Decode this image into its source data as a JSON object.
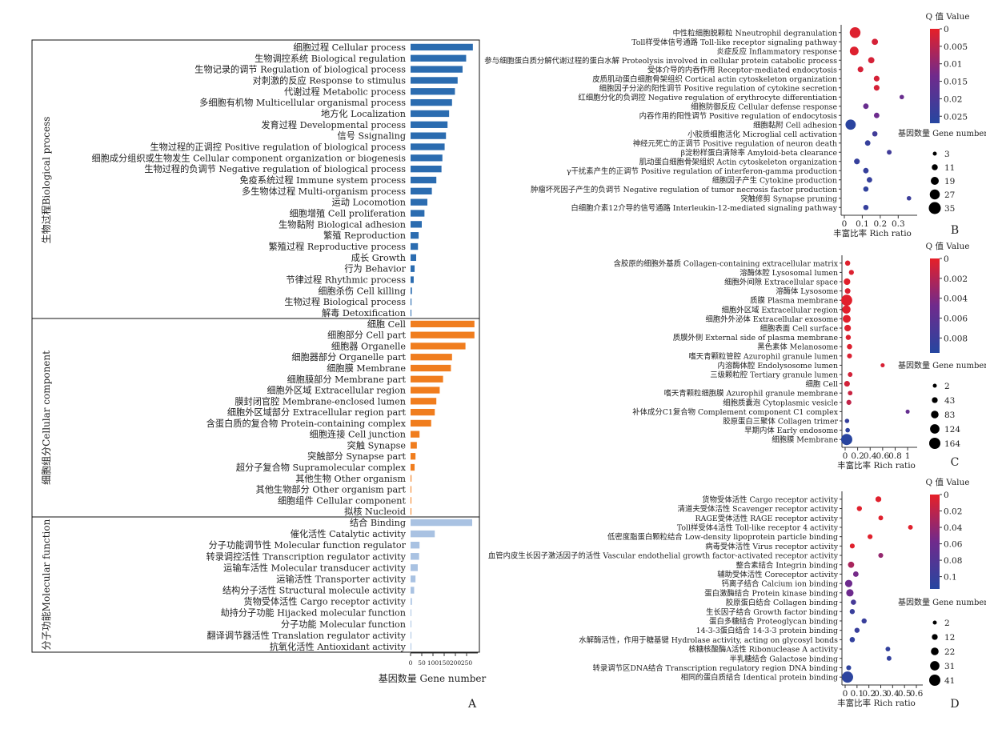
{
  "chart_data": [
    {
      "panel": "A",
      "type": "bar",
      "orientation": "horizontal",
      "xlabel": "基因数量 Gene number",
      "xlim": [
        0,
        300
      ],
      "xticks": [
        0,
        50,
        100,
        150,
        200,
        250
      ],
      "groups": [
        {
          "name": "生物过程Biological process",
          "color": "#2b6cb0",
          "categories": [
            "细胞过程 Cellular process",
            "生物调控系统 Biological regulation",
            "生物记录的调节 Regulation of biological process",
            "对刺激的反应 Response to stimulus",
            "代谢过程 Metabolic process",
            "多细胞有机物 Multicellular organismal process",
            "地方化 Localization",
            "发育过程 Developmental process",
            "信号 Ssignaling",
            "生物过程的正调控 Positive regulation of biological process",
            "细胞成分组织或生物发生 Cellular component organization or biogenesis",
            "生物过程的负调节 Negative regulation of biological process",
            "免疫系统过程 Immune system process",
            "多生物体过程 Multi-organism process",
            "运动 Locomotion",
            "细胞增殖 Cell proliferation",
            "生物黏附 Biological adhesion",
            "繁殖 Reproduction",
            "繁殖过程 Reproductive process",
            "成长 Growth",
            "行为 Behavior",
            "节律过程 Rhythmic process",
            "细胞杀伤 Cell killing",
            "生物过程 Biological process",
            "解毒 Detoxification"
          ],
          "values": [
            278,
            248,
            232,
            210,
            198,
            185,
            172,
            165,
            158,
            152,
            142,
            138,
            115,
            95,
            75,
            62,
            50,
            36,
            33,
            25,
            18,
            14,
            6,
            4,
            2
          ]
        },
        {
          "name": "细胞组分Cellular component",
          "color": "#f07d1e",
          "categories": [
            "细胞 Cell",
            "细胞部分 Cell part",
            "细胞器 Organelle",
            "细胞器部分 Organelle part",
            "细胞膜 Membrane",
            "细胞膜部分 Membrane part",
            "细胞外区域 Extracellular region",
            "膜封闭官腔 Membrane-enclosed lumen",
            "细胞外区域部分 Extracellular region part",
            "含蛋白质的复合物 Protein-containing complex",
            "细胞连接 Cell junction",
            "突触 Synapse",
            "突触部分 Synapse part",
            "超分子复合物 Supramolecular complex",
            "其他生物 Other organism",
            "其他生物部分 Other organism part",
            "细胞组件 Cellular component",
            "拟核 Nucleoid"
          ],
          "values": [
            285,
            285,
            245,
            185,
            180,
            145,
            130,
            115,
            108,
            92,
            40,
            28,
            22,
            18,
            4,
            3,
            2,
            1
          ]
        },
        {
          "name": "分子功能Molecular function",
          "color": "#a9c2e2",
          "categories": [
            "结合 Binding",
            "催化活性 Catalytic activity",
            "分子功能调节性 Molecular function regulator",
            "转录调控活性 Transcription regulator activity",
            "运输车活性 Molecular transducer activity",
            "运输活性 Transporter activity",
            "结构分子活性 Structural molecule activity",
            "货物受体活性 Cargo receptor activity",
            "劫持分子功能 Hijacked molecular function",
            "分子功能 Molecular function",
            "翻译调节器活性 Translation regulator activity",
            "抗氧化活性 Antioxidant activity"
          ],
          "values": [
            275,
            108,
            40,
            38,
            32,
            22,
            16,
            6,
            3,
            2,
            2,
            1
          ]
        }
      ]
    },
    {
      "panel": "B",
      "type": "scatter",
      "xlabel": "丰富比率 Rich ratio",
      "xlim": [
        0,
        0.37
      ],
      "xticks": [
        0,
        0.1,
        0.2,
        0.3
      ],
      "color_legend_title": "Q 值 Value",
      "color_ticks": [
        0,
        0.005,
        0.01,
        0.015,
        0.02,
        0.025
      ],
      "qlim": [
        0,
        0.027
      ],
      "size_legend_title": "基因数量 Gene number",
      "size_ticks": [
        3,
        11,
        19,
        27,
        35
      ],
      "sizelim": [
        3,
        35
      ],
      "terms": [
        "中性粒细胞脱颗粒 Nneutrophil degranulation",
        "Toll样受体信号通路 Toll-like receptor signaling pathway",
        "炎症反应 Inflammatory response",
        "参与细胞蛋白质分解代谢过程的蛋白水解 Proteolysis involved in cellular protein catabolic process",
        "受体介导的内吞作用 Receptor-mediated endocytosis",
        "皮质肌动蛋白细胞骨架组织 Cortical actin cytoskeleton organization",
        "细胞因子分泌的阳性调节 Positive regulation of cytokine secretion",
        "红细胞分化的负调控 Negative regulation of erythrocyte differentiation",
        "细胞防御反应 Cellular defense response",
        "内吞作用的阳性调节 Positive regulation of endocytosis",
        "细胞黏附 Cell adhesion",
        "小胶质细胞活化 Microglial cell activation",
        "神经元死亡的正调节 Positive regulation of neuron death",
        "β淀粉样蛋白清除率 Amyloid-beta clearance",
        "肌动蛋白细胞骨架组织 Actin cytoskeleton organization",
        "γ干扰素产生的正调节 Positive regulation of interferon-gamma production",
        "细胞因子产生 Cytokine production",
        "肿瘤坏死因子产生的负调节 Negative regulation of tumor necrosis factor production",
        "突触修剪 Synapse pruning",
        "白细胞介素12介导的信号通路 Interleukin-12-mediated signaling pathway"
      ],
      "rich_ratio": [
        0.06,
        0.17,
        0.055,
        0.15,
        0.09,
        0.18,
        0.18,
        0.32,
        0.12,
        0.18,
        0.035,
        0.17,
        0.13,
        0.25,
        0.07,
        0.12,
        0.14,
        0.12,
        0.36,
        0.12
      ],
      "q_value": [
        0.001,
        0.002,
        0.001,
        0.002,
        0.002,
        0.002,
        0.002,
        0.015,
        0.015,
        0.014,
        0.026,
        0.022,
        0.024,
        0.022,
        0.024,
        0.024,
        0.024,
        0.025,
        0.023,
        0.024
      ],
      "gene_number": [
        30,
        12,
        22,
        12,
        10,
        10,
        10,
        5,
        9,
        9,
        28,
        8,
        9,
        6,
        10,
        9,
        9,
        8,
        5,
        8
      ]
    },
    {
      "panel": "C",
      "type": "scatter",
      "xlabel": "丰富比率 Rich ratio",
      "xlim": [
        0,
        1.05
      ],
      "xticks": [
        0,
        0.2,
        0.4,
        0.6,
        0.8,
        1
      ],
      "color_legend_title": "Q 值 Value",
      "color_ticks": [
        0,
        0.002,
        0.004,
        0.006,
        0.008
      ],
      "qlim": [
        0,
        0.0095
      ],
      "size_legend_title": "基因数量 Gene number",
      "size_ticks": [
        2,
        43,
        83,
        124,
        164
      ],
      "sizelim": [
        2,
        164
      ],
      "terms": [
        "含胶原的细胞外基质 Collagen-containing extracellular matrix",
        "溶酶体腔 Lysosomal lumen",
        "细胞外间隙 Extracellular space",
        "溶酶体 Lysosome",
        "质膜 Plasma membrane",
        "细胞外区域 Extracellular region",
        "细胞外外泌体 Extracellular exosome",
        "细胞表面 Cell surface",
        "质膜外侧 External side of plasma membrane",
        "黑色素体 Melanosome",
        "嗜天青颗粒管腔 Azurophil granule lumen",
        "内溶酶体腔 Endolysosome lumen",
        "三级颗粒腔 Tertiary granule lumen",
        "细胞 Cell",
        "嗜天青颗粒细胞膜 Azurophil granule membrane",
        "细胞质囊泡 Cytoplasmic vesicle",
        "补体成分C1复合物 Complement component C1 complex",
        "胶原蛋白三聚体 Collagen trimer",
        "早期内体 Early endosome",
        "细胞膜 Membrane"
      ],
      "rich_ratio": [
        0.04,
        0.1,
        0.03,
        0.04,
        0.025,
        0.02,
        0.025,
        0.04,
        0.05,
        0.07,
        0.07,
        0.6,
        0.08,
        0.03,
        0.08,
        0.06,
        1.0,
        0.03,
        0.04,
        0.025
      ],
      "q_value": [
        0.0003,
        0.0004,
        0.0002,
        0.0004,
        0.0002,
        0.0002,
        0.0002,
        0.0003,
        0.0004,
        0.0004,
        0.0005,
        0.0006,
        0.0008,
        0.0008,
        0.0012,
        0.0015,
        0.0055,
        0.0085,
        0.009,
        0.0093
      ],
      "gene_number": [
        30,
        25,
        60,
        38,
        160,
        100,
        90,
        60,
        28,
        30,
        22,
        5,
        18,
        40,
        15,
        25,
        4,
        12,
        14,
        164
      ]
    },
    {
      "panel": "D",
      "type": "scatter",
      "xlabel": "丰富比率 Rich ratio",
      "xlim": [
        0,
        0.6
      ],
      "xticks": [
        0,
        0.1,
        0.2,
        0.3,
        0.4,
        0.5,
        0.6
      ],
      "color_legend_title": "Q 值 Value",
      "color_ticks": [
        0,
        0.02,
        0.04,
        0.06,
        0.08,
        0.1
      ],
      "qlim": [
        0,
        0.115
      ],
      "size_legend_title": "基因数量 Gene number",
      "size_ticks": [
        2,
        12,
        22,
        31,
        41
      ],
      "sizelim": [
        2,
        41
      ],
      "terms": [
        "货物受体活性 Cargo receptor activity",
        "清道夫受体活性 Scavenger receptor activity",
        "RAGE受体活性 RAGE receptor activity",
        "Toll样受体4活性 Toll-like receptor 4 activity",
        "低密度脂蛋白颗粒结合 Low-density lipoprotein particle binding",
        "病毒受体活性 Virus receptor activity",
        "血管内皮生长因子激活因子的活性 Vascular endothelial growth factor-activated receptor activity",
        "整合素结合 Integrin binding",
        "辅助受体活性 Coreceptor activity",
        "钙离子结合 Calcium ion binding",
        "蛋白激酶结合 Protein kinase binding",
        "胶原蛋白结合 Collagen binding",
        "生长因子结合 Growth factor binding",
        "蛋白多糖结合 Proteoglycan binding",
        "14-3-3蛋白结合 14-3-3 protein binding",
        "水解酶活性，作用于糖基键 Hydrolase activity, acting on glycosyl bonds",
        "核糖核酸酶A活性 Ribonuclease A activity",
        "半乳糖结合 Galactose binding",
        "转录调节区DNA结合 Transcription regulatory region DNA binding",
        "相同的蛋白质结合 Identical protein binding"
      ],
      "rich_ratio": [
        0.28,
        0.12,
        0.3,
        0.55,
        0.21,
        0.06,
        0.3,
        0.05,
        0.09,
        0.03,
        0.04,
        0.07,
        0.06,
        0.16,
        0.1,
        0.06,
        0.36,
        0.37,
        0.03,
        0.02
      ],
      "q_value": [
        0.003,
        0.003,
        0.003,
        0.003,
        0.003,
        0.003,
        0.04,
        0.03,
        0.055,
        0.06,
        0.06,
        0.09,
        0.1,
        0.1,
        0.1,
        0.105,
        0.105,
        0.105,
        0.108,
        0.11
      ],
      "gene_number": [
        12,
        8,
        6,
        6,
        7,
        7,
        7,
        14,
        10,
        20,
        20,
        9,
        8,
        8,
        8,
        9,
        6,
        6,
        7,
        41
      ]
    }
  ]
}
